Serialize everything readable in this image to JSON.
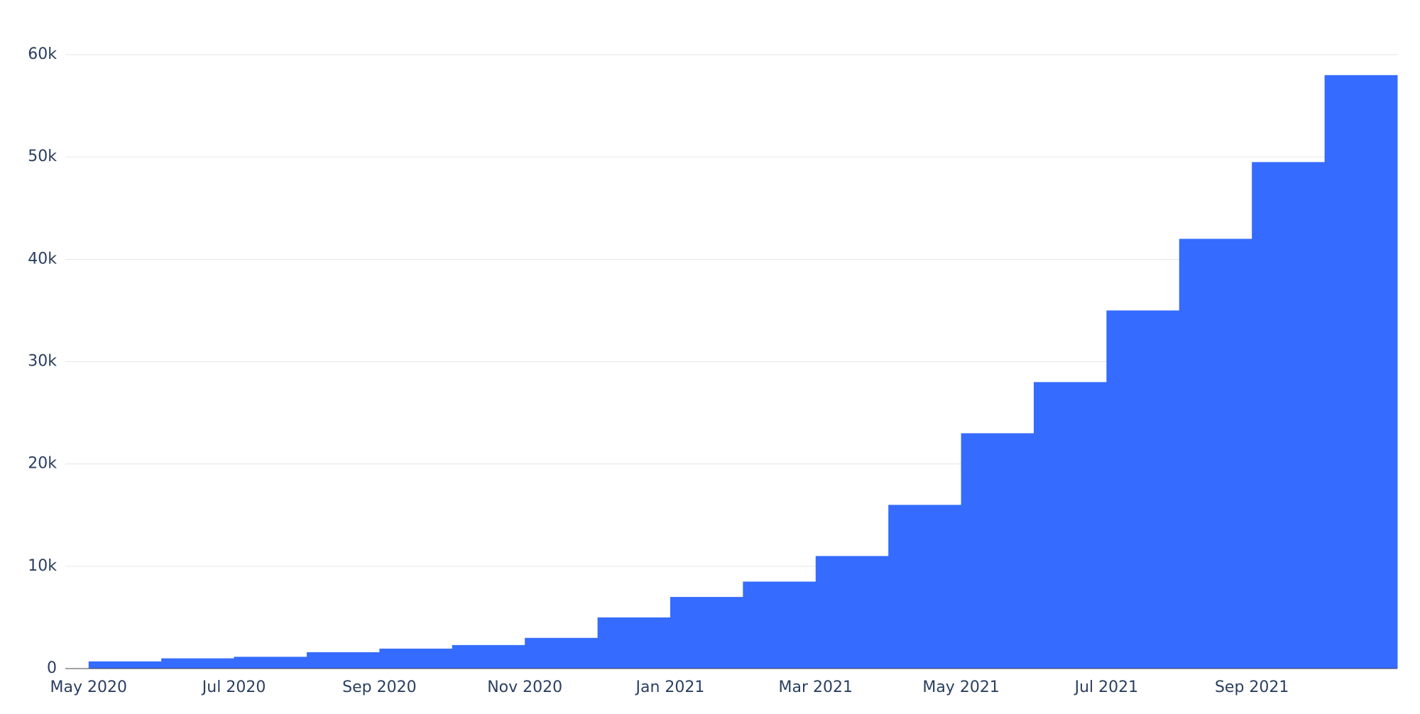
{
  "chart_data": {
    "type": "bar",
    "categories": [
      "May 2020",
      null,
      "Jul 2020",
      null,
      "Sep 2020",
      null,
      "Nov 2020",
      null,
      "Jan 2021",
      null,
      "Mar 2021",
      null,
      "May 2021",
      null,
      "Jul 2021",
      null,
      "Sep 2021",
      null
    ],
    "values": [
      700,
      1000,
      1150,
      1600,
      1950,
      2300,
      3000,
      5000,
      7000,
      8500,
      11000,
      16000,
      23000,
      28000,
      35000,
      42000,
      49500,
      58000
    ],
    "color": "#356bff",
    "ylim": [
      0,
      60000
    ],
    "yticks": [
      0,
      {
        "value": 10000,
        "label": "10k"
      },
      {
        "value": 20000,
        "label": "20k"
      },
      {
        "value": 30000,
        "label": "30k"
      },
      {
        "value": 40000,
        "label": "40k"
      },
      {
        "value": 50000,
        "label": "50k"
      },
      {
        "value": 60000,
        "label": "60k"
      }
    ],
    "grid": true
  }
}
